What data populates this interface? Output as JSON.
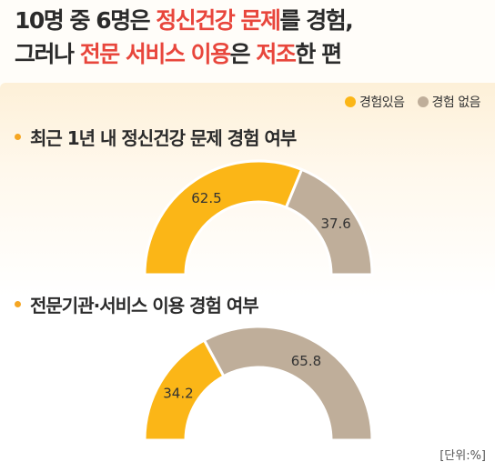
{
  "title": {
    "line1": [
      {
        "text": "10명 중 6명은 ",
        "highlight": false
      },
      {
        "text": "정신건강 문제",
        "highlight": true
      },
      {
        "text": "를 경험,",
        "highlight": false
      }
    ],
    "line2": [
      {
        "text": "그러나 ",
        "highlight": false
      },
      {
        "text": "전문 서비스 이용",
        "highlight": true
      },
      {
        "text": "은 ",
        "highlight": false
      },
      {
        "text": "저조",
        "highlight": true
      },
      {
        "text": "한 편",
        "highlight": false
      }
    ]
  },
  "legend": {
    "experienced": "경험있음",
    "not_experienced": "경험 없음"
  },
  "unit_label": "[단위:%]",
  "colors": {
    "experienced": "#fbb617",
    "not_experienced": "#bfae9a",
    "highlight": "#e8463c",
    "bullet": "#f5a623"
  },
  "chart_data": [
    {
      "type": "pie",
      "variant": "half-donut",
      "title": "최근 1년 내 정신건강 문제 경험 여부",
      "categories": [
        "경험있음",
        "경험 없음"
      ],
      "values": [
        62.5,
        37.6
      ],
      "value_labels": [
        "62.5",
        "37.6"
      ],
      "unit": "%"
    },
    {
      "type": "pie",
      "variant": "half-donut",
      "title": "전문기관·서비스 이용 경험 여부",
      "categories": [
        "경험있음",
        "경험 없음"
      ],
      "values": [
        34.2,
        65.8
      ],
      "value_labels": [
        "34.2",
        "65.8"
      ],
      "unit": "%"
    }
  ]
}
